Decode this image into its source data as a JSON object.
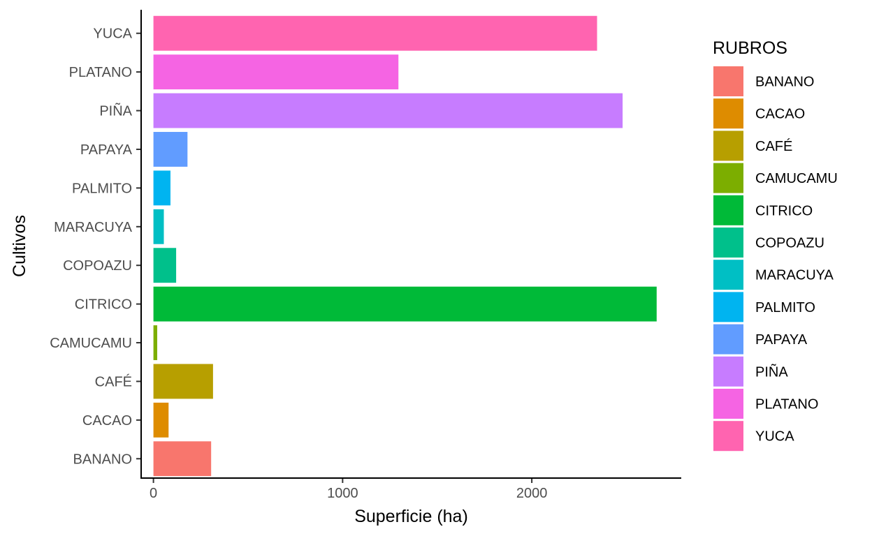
{
  "chart_data": {
    "type": "bar",
    "orientation": "horizontal",
    "title": "",
    "xlabel": "Superficie (ha)",
    "ylabel": "Cultivos",
    "xlim": [
      -65,
      2790
    ],
    "x_ticks": [
      0,
      1000,
      2000
    ],
    "grid": false,
    "legend_title": "RUBROS",
    "legend_position": "right",
    "categories": [
      "BANANO",
      "CACAO",
      "CAFÉ",
      "CAMUCAMU",
      "CITRICO",
      "COPOAZU",
      "MARACUYA",
      "PALMITO",
      "PAPAYA",
      "PIÑA",
      "PLATANO",
      "YUCA"
    ],
    "values": [
      305,
      80,
      315,
      20,
      2660,
      120,
      55,
      90,
      180,
      2480,
      1295,
      2345
    ],
    "colors": [
      "#F8766D",
      "#DE8C00",
      "#B79F00",
      "#7CAE00",
      "#00BA38",
      "#00C08B",
      "#00BFC4",
      "#00B4F0",
      "#619CFF",
      "#C77CFF",
      "#F564E3",
      "#FF64B0"
    ]
  }
}
